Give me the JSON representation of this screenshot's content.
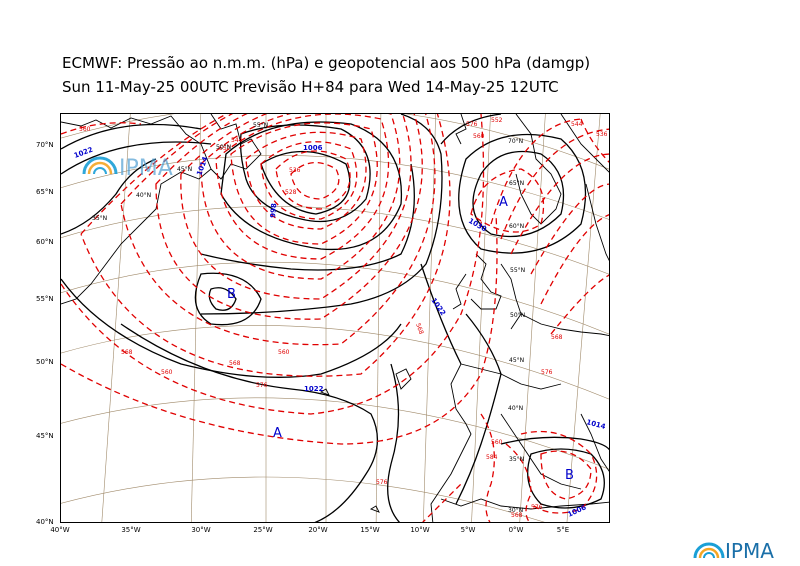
{
  "title_line1": "ECMWF:  Pressão ao n.m.m. (hPa) e geopotencial aos 500 hPa (damgp)",
  "title_line2": "Sun 11-May-25 00UTC Previsão H+84 para Wed 14-May-25 12UTC",
  "brand": "IPMA",
  "brand_color": "#1a9fd6",
  "isobar_color": "#000000",
  "geopotential_color": "#e00000",
  "isobar_label_color": "#0000cc",
  "latitude_ticks": [
    "70°N",
    "65°N",
    "60°N",
    "55°N",
    "50°N",
    "45°N",
    "40°N"
  ],
  "longitude_ticks": [
    "40°W",
    "35°W",
    "30°W",
    "25°W",
    "20°W",
    "15°W",
    "10°W",
    "5°W",
    "0°W",
    "5°E"
  ],
  "grid_labels": [
    "55°N",
    "50°N",
    "45°N",
    "40°N",
    "35°N",
    "70°N",
    "65°N",
    "60°N",
    "55°N",
    "50°N",
    "45°N",
    "40°N",
    "35°N",
    "30°N"
  ],
  "pressure_centers": [
    {
      "symbol": "A",
      "kind": "high"
    },
    {
      "symbol": "B",
      "kind": "low"
    },
    {
      "symbol": "A",
      "kind": "high"
    },
    {
      "symbol": "B",
      "kind": "low"
    }
  ],
  "isobar_labels": [
    "1022",
    "1014",
    "1006",
    "998",
    "1030",
    "1022",
    "1022",
    "1014",
    "1006"
  ],
  "geopotential_labels": [
    "560",
    "552",
    "544",
    "536",
    "528",
    "576",
    "568",
    "560",
    "560",
    "568",
    "576",
    "584",
    "568",
    "576",
    "560",
    "552",
    "544",
    "536",
    "568",
    "576",
    "560",
    "576",
    "568"
  ]
}
